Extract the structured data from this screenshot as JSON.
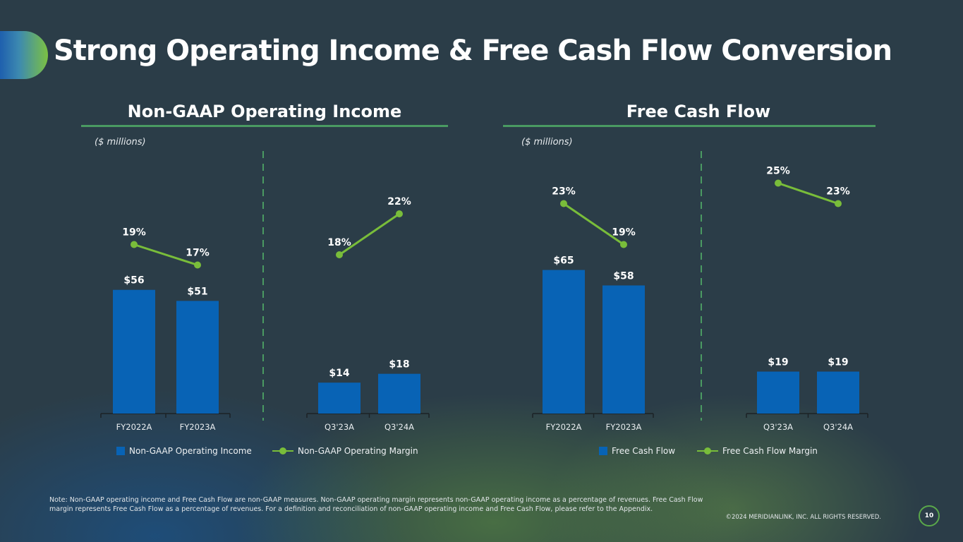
{
  "title": "Strong Operating Income & Free Cash Flow Conversion",
  "sections": [
    {
      "title": "Non-GAAP Operating Income",
      "units": "($ millions)",
      "legend": {
        "bar": "Non-GAAP Operating Income",
        "line": "Non-GAAP Operating Margin"
      }
    },
    {
      "title": "Free Cash Flow",
      "units": "($ millions)",
      "legend": {
        "bar": "Free Cash Flow",
        "line": "Free Cash Flow Margin"
      }
    }
  ],
  "colors": {
    "bar": "#0863b5",
    "line": "#79bd3a",
    "divider": "#4a9a62"
  },
  "chart_data": [
    {
      "type": "bar",
      "title": "Non-GAAP Operating Income",
      "ylabel": "$ millions",
      "categories": [
        "FY2022A",
        "FY2023A"
      ],
      "series": [
        {
          "name": "Non-GAAP Operating Income",
          "values": [
            56,
            51
          ],
          "labels": [
            "$56",
            "$51"
          ]
        },
        {
          "name": "Non-GAAP Operating Margin",
          "type": "line",
          "values": [
            19,
            17
          ],
          "labels": [
            "19%",
            "17%"
          ]
        }
      ]
    },
    {
      "type": "bar",
      "title": "Non-GAAP Operating Income",
      "ylabel": "$ millions",
      "categories": [
        "Q3'23A",
        "Q3'24A"
      ],
      "series": [
        {
          "name": "Non-GAAP Operating Income",
          "values": [
            14,
            18
          ],
          "labels": [
            "$14",
            "$18"
          ]
        },
        {
          "name": "Non-GAAP Operating Margin",
          "type": "line",
          "values": [
            18,
            22
          ],
          "labels": [
            "18%",
            "22%"
          ]
        }
      ]
    },
    {
      "type": "bar",
      "title": "Free Cash Flow",
      "ylabel": "$ millions",
      "categories": [
        "FY2022A",
        "FY2023A"
      ],
      "series": [
        {
          "name": "Free Cash Flow",
          "values": [
            65,
            58
          ],
          "labels": [
            "$65",
            "$58"
          ]
        },
        {
          "name": "Free Cash Flow Margin",
          "type": "line",
          "values": [
            23,
            19
          ],
          "labels": [
            "23%",
            "19%"
          ]
        }
      ]
    },
    {
      "type": "bar",
      "title": "Free Cash Flow",
      "ylabel": "$ millions",
      "categories": [
        "Q3'23A",
        "Q3'24A"
      ],
      "series": [
        {
          "name": "Free Cash Flow",
          "values": [
            19,
            19
          ],
          "labels": [
            "$19",
            "$19"
          ]
        },
        {
          "name": "Free Cash Flow Margin",
          "type": "line",
          "values": [
            25,
            23
          ],
          "labels": [
            "25%",
            "23%"
          ]
        }
      ]
    }
  ],
  "note": "Note: Non-GAAP operating income and Free Cash Flow are non-GAAP measures. Non-GAAP operating margin represents non-GAAP operating income as a percentage of revenues. Free Cash Flow margin represents Free Cash Flow as a percentage of revenues. For a definition and reconciliation of non-GAAP operating income and Free Cash Flow, please refer to the Appendix.",
  "copyright": "©2024 MERIDIANLINK, INC. ALL RIGHTS RESERVED.",
  "page_number": "10"
}
